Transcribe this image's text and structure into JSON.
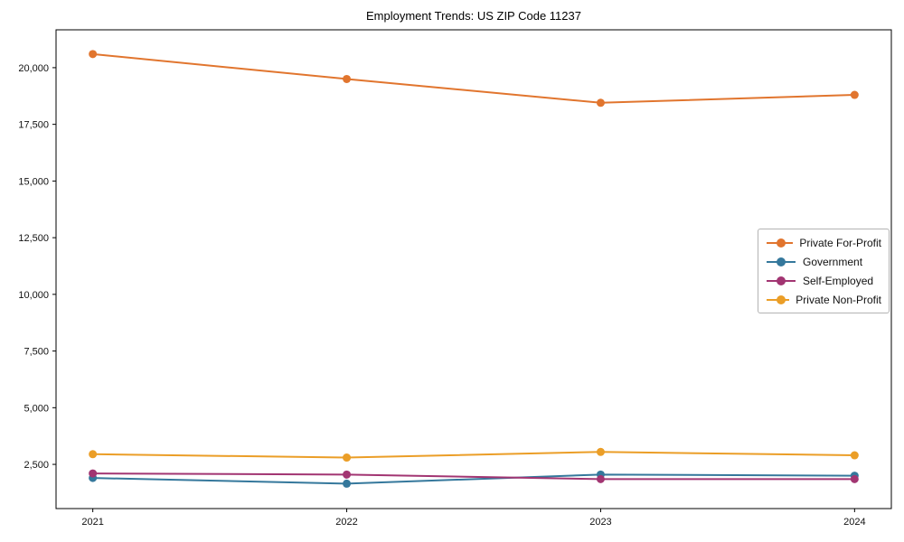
{
  "chart_data": {
    "type": "line",
    "title": "Employment Trends: US ZIP Code 11237",
    "x": [
      2021,
      2022,
      2023,
      2024
    ],
    "x_tick_labels": [
      "2021",
      "2022",
      "2023",
      "2024"
    ],
    "series": [
      {
        "name": "Private For-Profit",
        "color": "#e1752e",
        "values": [
          20600,
          19500,
          18450,
          18800
        ]
      },
      {
        "name": "Government",
        "color": "#35789c",
        "values": [
          1900,
          1650,
          2050,
          2000
        ]
      },
      {
        "name": "Self-Employed",
        "color": "#a23572",
        "values": [
          2100,
          2050,
          1850,
          1850
        ]
      },
      {
        "name": "Private Non-Profit",
        "color": "#eb9e27",
        "values": [
          2950,
          2800,
          3050,
          2900
        ]
      }
    ],
    "ylim": [
      550,
      21670
    ],
    "yticks": [
      2500,
      5000,
      7500,
      10000,
      12500,
      15000,
      17500,
      20000
    ],
    "ytick_labels": [
      "2,500",
      "5,000",
      "7,500",
      "10,000",
      "12,500",
      "15,000",
      "17,500",
      "20,000"
    ],
    "grid": false,
    "legend_position": "center-right",
    "axis_color": "#000000"
  }
}
